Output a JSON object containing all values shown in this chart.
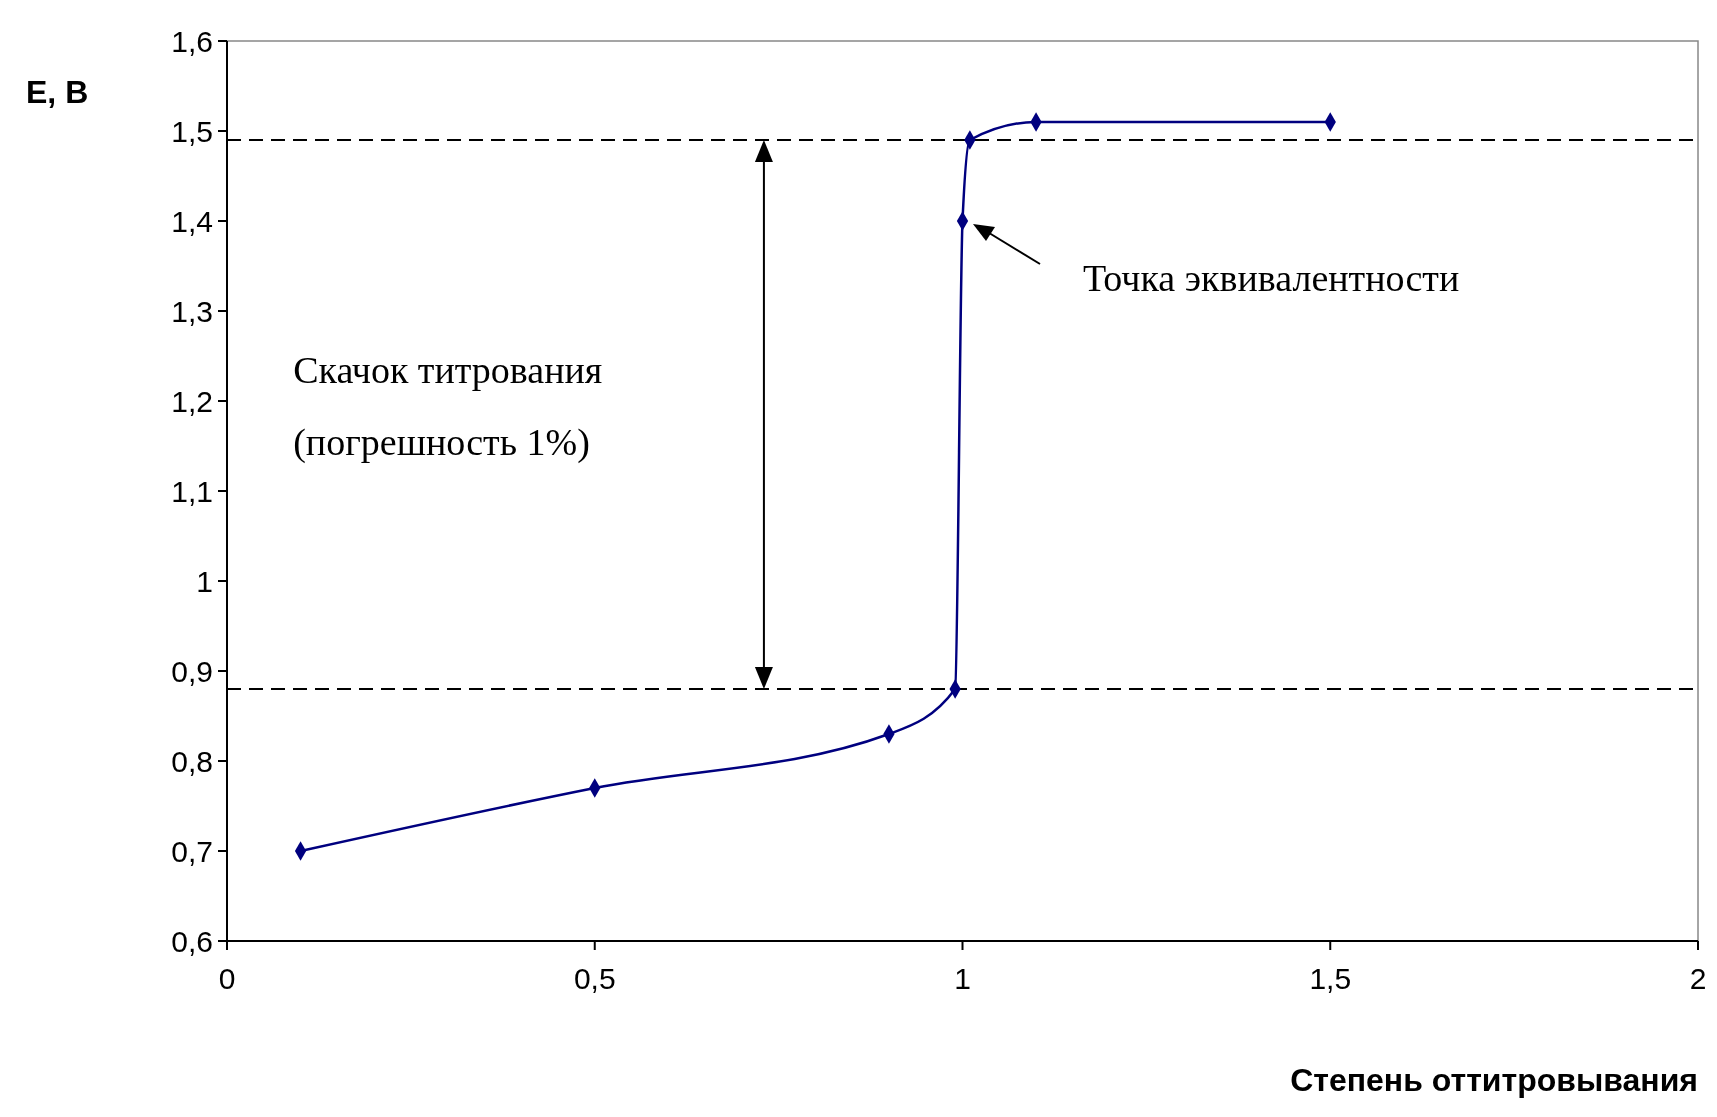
{
  "chart_data": {
    "type": "line",
    "xlabel": "Степень оттитровывания",
    "ylabel": "E, В",
    "x": [
      0.1,
      0.5,
      0.9,
      0.99,
      1.0,
      1.01,
      1.1,
      1.5
    ],
    "series": [
      {
        "color": "#00007f",
        "values": [
          0.7,
          0.77,
          0.83,
          0.88,
          1.4,
          1.49,
          1.51,
          1.51
        ]
      }
    ],
    "xlim": [
      0,
      2
    ],
    "ylim": [
      0.6,
      1.6
    ],
    "xticks": [
      0,
      {
        "value": 0.5,
        "label": "0,5"
      },
      1,
      {
        "value": 1.5,
        "label": "1,5"
      },
      2
    ],
    "yticks": [
      {
        "value": 0.6,
        "label": "0,6"
      },
      {
        "value": 0.7,
        "label": "0,7"
      },
      {
        "value": 0.8,
        "label": "0,8"
      },
      {
        "value": 0.9,
        "label": "0,9"
      },
      1,
      {
        "value": 1.1,
        "label": "1,1"
      },
      {
        "value": 1.2,
        "label": "1,2"
      },
      {
        "value": 1.3,
        "label": "1,3"
      },
      {
        "value": 1.4,
        "label": "1,4"
      },
      {
        "value": 1.5,
        "label": "1,5"
      },
      {
        "value": 1.6,
        "label": "1,6"
      }
    ],
    "ref_lines": [
      {
        "axis": "y",
        "value": 1.49,
        "color": "#000000",
        "line_style": "dashed"
      },
      {
        "axis": "y",
        "value": 0.88,
        "color": "#000000",
        "line_style": "dashed"
      }
    ],
    "annotations": [
      "Точка эквивалентности",
      "Скачок титрования\n(погрешность 1%)"
    ],
    "marker": "diamond",
    "line_style": "solid"
  }
}
